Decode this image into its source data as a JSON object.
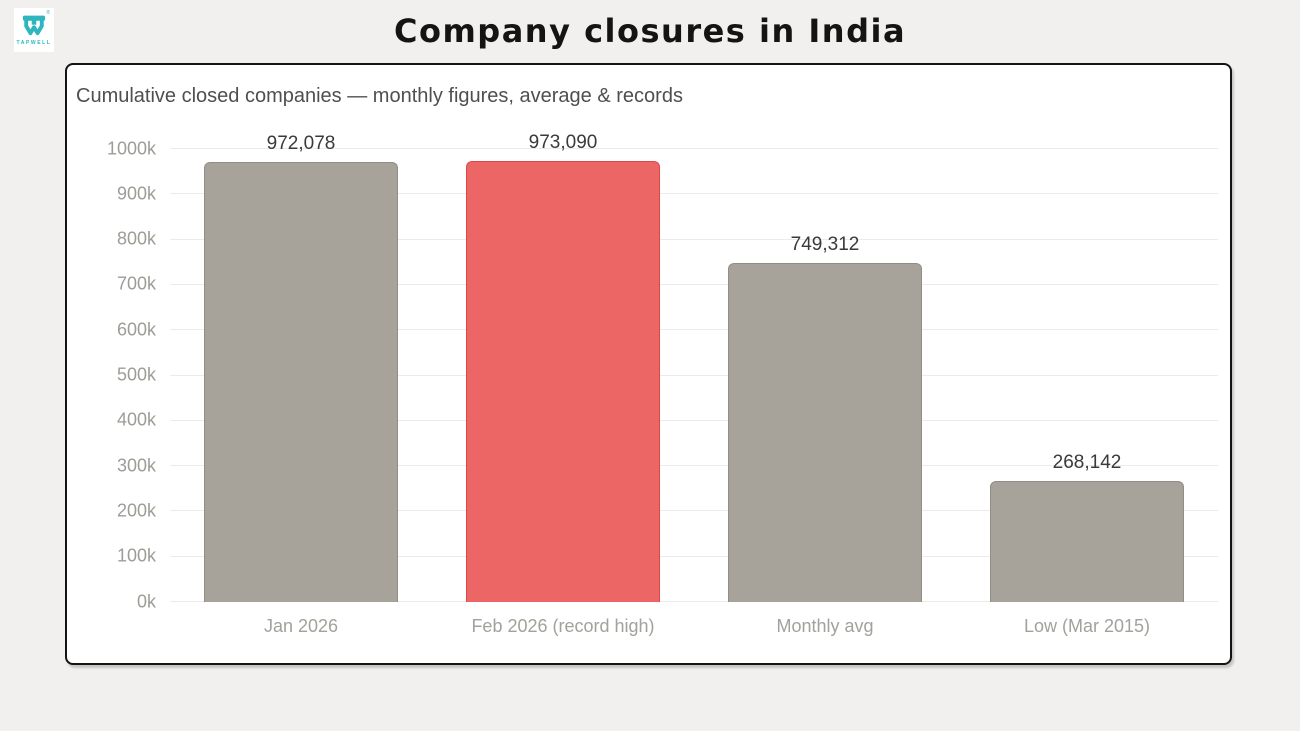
{
  "logo": {
    "brand": "TAPWELL",
    "registered_mark": "®",
    "color": "#2bb7bd"
  },
  "chart_data": {
    "type": "bar",
    "title": "Company closures in India",
    "subtitle": "Cumulative closed companies — monthly figures, average & records",
    "categories": [
      "Jan 2026",
      "Feb 2026 (record high)",
      "Monthly avg",
      "Low (Mar 2015)"
    ],
    "values": [
      972078,
      973090,
      749312,
      268142
    ],
    "value_labels": [
      "972,078",
      "973,090",
      "749,312",
      "268,142"
    ],
    "bar_colors": [
      "#a7a39b",
      "#ed6666",
      "#a7a39b",
      "#a7a39b"
    ],
    "bar_border_colors": [
      "#918d85",
      "#dc4848",
      "#918d85",
      "#918d85"
    ],
    "highlight_index": 1,
    "xlabel": "",
    "ylabel": "",
    "ylim": [
      0,
      1000000
    ],
    "ytick_step": 100000,
    "ytick_labels": [
      "0k",
      "100k",
      "200k",
      "300k",
      "400k",
      "500k",
      "600k",
      "700k",
      "800k",
      "900k",
      "1000k"
    ],
    "grid": true,
    "legend": false
  },
  "colors": {
    "page_background": "#f1f0ee",
    "card_background": "#ffffff",
    "card_border": "#141414",
    "gridline": "#ebebe8",
    "tick_text": "#9d9c96",
    "value_text": "#3a3a3a",
    "highlight_red": "#ed6666",
    "neutral_gray": "#a7a39b",
    "brand_teal": "#2bb7bd"
  }
}
